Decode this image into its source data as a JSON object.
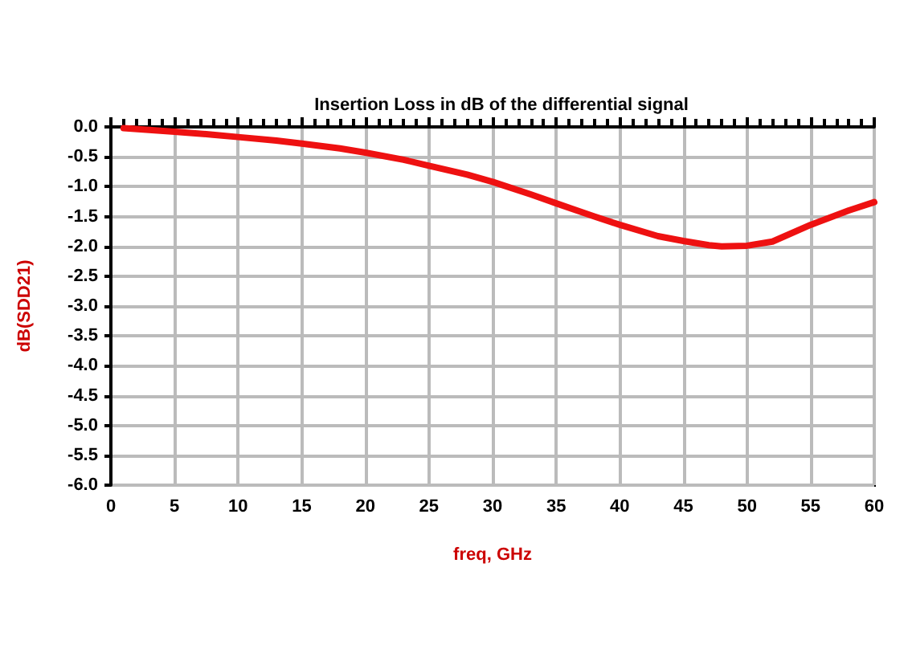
{
  "chart_data": {
    "type": "line",
    "title": "Insertion Loss in dB of the differential signal",
    "xlabel": "freq, GHz",
    "ylabel": "dB(SDD21)",
    "series": [
      {
        "color": "#ee1111",
        "x": [
          1,
          3,
          5,
          8,
          10,
          13,
          15,
          18,
          20,
          23,
          25,
          28,
          30,
          33,
          35,
          38,
          40,
          43,
          45,
          47,
          48,
          50,
          52,
          55,
          58,
          60
        ],
        "values": [
          -0.02,
          -0.05,
          -0.08,
          -0.13,
          -0.17,
          -0.23,
          -0.28,
          -0.36,
          -0.43,
          -0.55,
          -0.65,
          -0.8,
          -0.92,
          -1.13,
          -1.28,
          -1.5,
          -1.64,
          -1.83,
          -1.91,
          -1.98,
          -2.0,
          -1.99,
          -1.92,
          -1.64,
          -1.4,
          -1.26
        ]
      }
    ],
    "xlim": [
      0,
      60
    ],
    "xticks": [
      0,
      5,
      10,
      15,
      20,
      25,
      30,
      35,
      40,
      45,
      50,
      55,
      60
    ],
    "ylim": [
      -6,
      0
    ],
    "yticks": [
      {
        "value": -6,
        "label": "-6.0"
      },
      {
        "value": -5.5,
        "label": "-5.5"
      },
      {
        "value": -5,
        "label": "-5.0"
      },
      {
        "value": -4.5,
        "label": "-4.5"
      },
      {
        "value": -4,
        "label": "-4.0"
      },
      {
        "value": -3.5,
        "label": "-3.5"
      },
      {
        "value": -3,
        "label": "-3.0"
      },
      {
        "value": -2.5,
        "label": "-2.5"
      },
      {
        "value": -2,
        "label": "-2.0"
      },
      {
        "value": -1.5,
        "label": "-1.5"
      },
      {
        "value": -1,
        "label": "-1.0"
      },
      {
        "value": -0.5,
        "label": "-0.5"
      },
      {
        "value": 0,
        "label": "0.0"
      }
    ],
    "grid": true,
    "marker": "none",
    "line_style": "solid"
  }
}
